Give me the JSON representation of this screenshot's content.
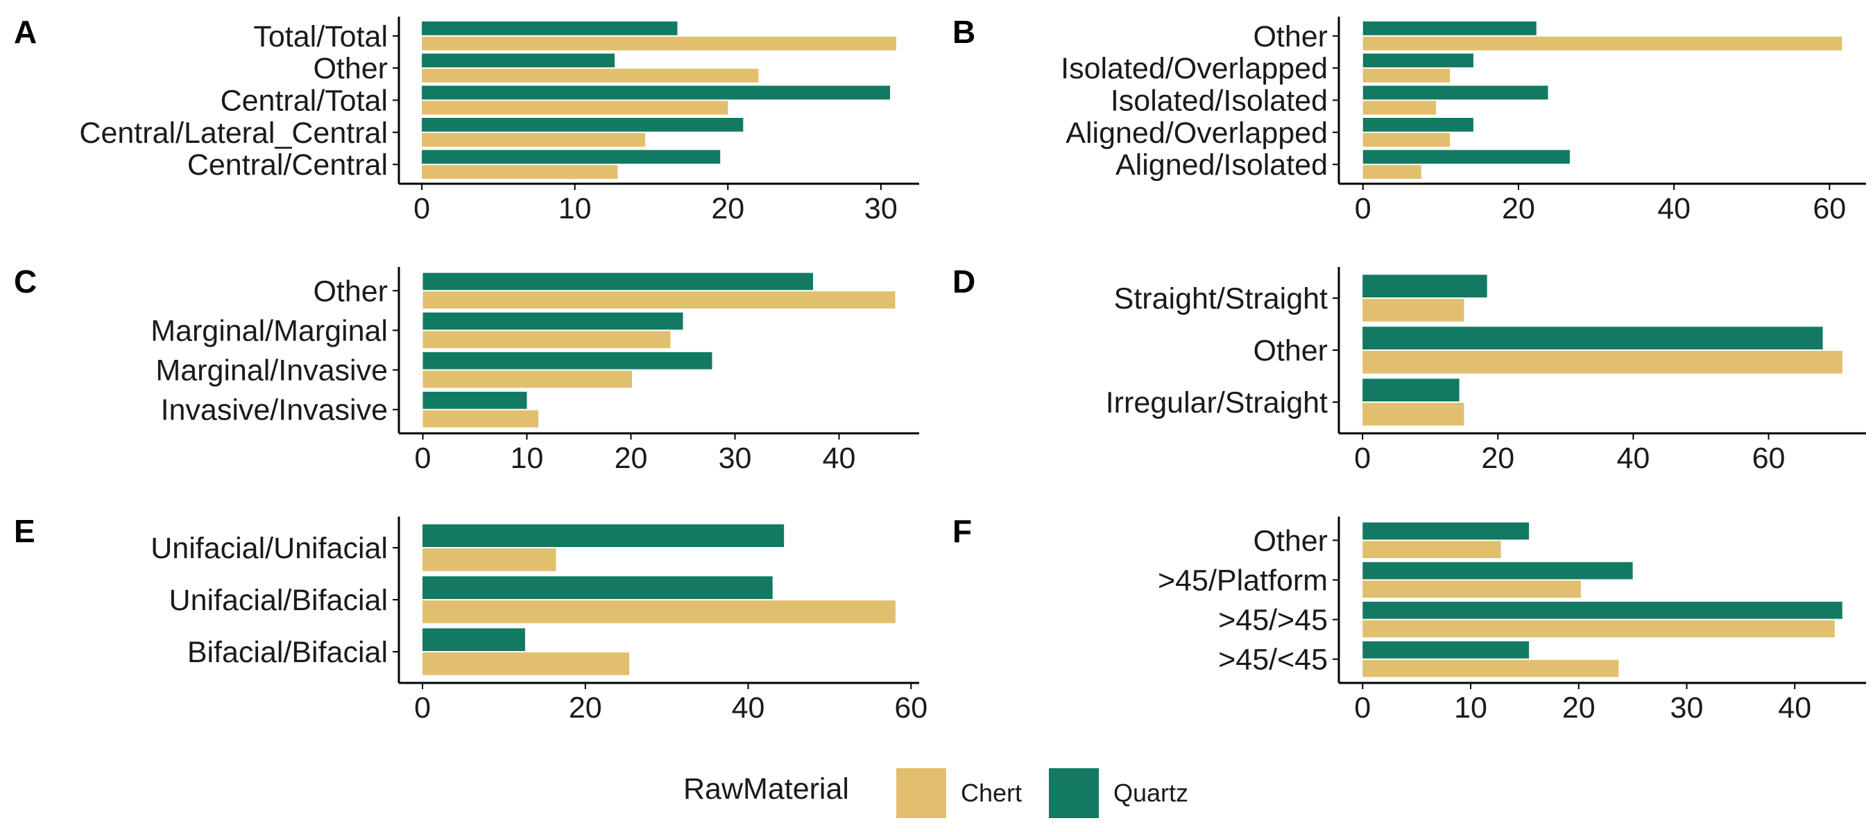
{
  "colors": {
    "Chert": "#E2BF6E",
    "Quartz": "#127A62",
    "axis": "#000000",
    "text": "#1a1a1a"
  },
  "legend": {
    "title": "RawMaterial",
    "items": [
      {
        "name": "Chert",
        "label": "Chert"
      },
      {
        "name": "Quartz",
        "label": "Quartz"
      }
    ],
    "position": "bottom"
  },
  "chart_data": [
    {
      "panel": "A",
      "type": "bar",
      "orientation": "horizontal",
      "categories": [
        "Total/Total",
        "Other",
        "Central/Total",
        "Central/Lateral_Central",
        "Central/Central"
      ],
      "series": [
        {
          "name": "Quartz",
          "values": [
            16.7,
            12.6,
            30.6,
            21.0,
            19.5
          ]
        },
        {
          "name": "Chert",
          "values": [
            31.0,
            22.0,
            20.0,
            14.6,
            12.8
          ]
        }
      ],
      "xlim": [
        -1.5,
        32.5
      ],
      "xticks": [
        0,
        10,
        20,
        30
      ],
      "grid": false
    },
    {
      "panel": "B",
      "type": "bar",
      "orientation": "horizontal",
      "categories": [
        "Other",
        "Isolated/Overlapped",
        "Isolated/Isolated",
        "Aligned/Overlapped",
        "Aligned/Isolated"
      ],
      "series": [
        {
          "name": "Quartz",
          "values": [
            22.3,
            14.2,
            23.8,
            14.2,
            26.6
          ]
        },
        {
          "name": "Chert",
          "values": [
            61.6,
            11.2,
            9.4,
            11.2,
            7.5
          ]
        }
      ],
      "xlim": [
        -3.1,
        64.7
      ],
      "xticks": [
        0,
        20,
        40,
        60
      ],
      "grid": false
    },
    {
      "panel": "C",
      "type": "bar",
      "orientation": "horizontal",
      "categories": [
        "Other",
        "Marginal/Marginal",
        "Marginal/Invasive",
        "Invasive/Invasive"
      ],
      "series": [
        {
          "name": "Quartz",
          "values": [
            37.5,
            25.0,
            27.8,
            10.0
          ]
        },
        {
          "name": "Chert",
          "values": [
            45.4,
            23.8,
            20.1,
            11.1
          ]
        }
      ],
      "xlim": [
        -2.3,
        47.7
      ],
      "xticks": [
        0,
        10,
        20,
        30,
        40
      ],
      "grid": false
    },
    {
      "panel": "D",
      "type": "bar",
      "orientation": "horizontal",
      "categories": [
        "Straight/Straight",
        "Other",
        "Irregular/Straight"
      ],
      "series": [
        {
          "name": "Quartz",
          "values": [
            18.4,
            68.0,
            14.3
          ]
        },
        {
          "name": "Chert",
          "values": [
            15.0,
            70.9,
            15.0
          ]
        }
      ],
      "xlim": [
        -3.5,
        74.4
      ],
      "xticks": [
        0,
        20,
        40,
        60
      ],
      "grid": false
    },
    {
      "panel": "E",
      "type": "bar",
      "orientation": "horizontal",
      "categories": [
        "Unifacial/Unifacial",
        "Unifacial/Bifacial",
        "Bifacial/Bifacial"
      ],
      "series": [
        {
          "name": "Quartz",
          "values": [
            44.4,
            43.0,
            12.6
          ]
        },
        {
          "name": "Chert",
          "values": [
            16.4,
            58.1,
            25.4
          ]
        }
      ],
      "xlim": [
        -2.9,
        61.0
      ],
      "xticks": [
        0,
        20,
        40,
        60
      ],
      "grid": false
    },
    {
      "panel": "F",
      "type": "bar",
      "orientation": "horizontal",
      "categories": [
        "Other",
        ">45/Platform",
        ">45/>45",
        ">45/<45"
      ],
      "series": [
        {
          "name": "Quartz",
          "values": [
            15.4,
            25.0,
            44.4,
            15.4
          ]
        },
        {
          "name": "Chert",
          "values": [
            12.8,
            20.2,
            43.7,
            23.7
          ]
        }
      ],
      "xlim": [
        -2.2,
        46.6
      ],
      "xticks": [
        0,
        10,
        20,
        30,
        40
      ],
      "grid": false
    }
  ]
}
